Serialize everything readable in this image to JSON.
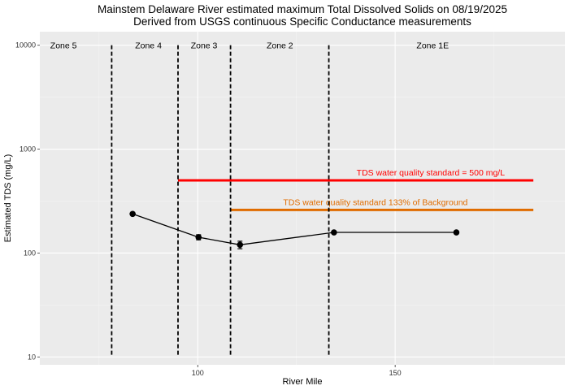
{
  "chart_data": {
    "type": "line",
    "title": "Mainstem Delaware River estimated maximum Total Dissolved Solids on 08/19/2025",
    "subtitle": "Derived from USGS continuous Specific Conductance measurements",
    "xlabel": "River Mile",
    "ylabel": "Estimated TDS (mg/L)",
    "xlim": [
      60,
      193
    ],
    "ylim": [
      8.4,
      13500
    ],
    "yscale": "log",
    "x_ticks": [
      100,
      150
    ],
    "x_tick_labels": [
      "100",
      "150"
    ],
    "y_ticks": [
      10,
      100,
      1000,
      10000
    ],
    "y_tick_labels": [
      "10",
      "100",
      "1000",
      "10000"
    ],
    "grid": true,
    "legend": "none",
    "series": [
      {
        "color": "#000000",
        "x": [
          83.5,
          100.2,
          110.7,
          134.5,
          165.5
        ],
        "y": [
          238,
          142,
          120,
          158,
          158
        ],
        "y_low": [
          234,
          134,
          110,
          154,
          154
        ],
        "y_high": [
          242,
          150,
          130,
          162,
          162
        ]
      }
    ],
    "reference_lines": [
      {
        "label": "TDS water quality standard = 500 mg/L",
        "y": 500,
        "x_start": 95,
        "x_end": 185,
        "color": "#ff0000",
        "label_x": 159,
        "label_y": 600
      },
      {
        "label": "TDS water quality standard 133% of Background",
        "y": 260,
        "x_start": 108.3,
        "x_end": 185,
        "color": "#e06c00",
        "label_x": 145,
        "label_y": 310
      }
    ],
    "zone_boundaries": [
      78.2,
      95,
      108.3,
      133.2
    ],
    "zones": [
      {
        "label": "Zone 5",
        "x": 66
      },
      {
        "label": "Zone 4",
        "x": 87.5
      },
      {
        "label": "Zone 3",
        "x": 101.6
      },
      {
        "label": "Zone 2",
        "x": 120.8
      },
      {
        "label": "Zone 1E",
        "x": 159.5
      }
    ],
    "zone_label_y": 10000
  }
}
